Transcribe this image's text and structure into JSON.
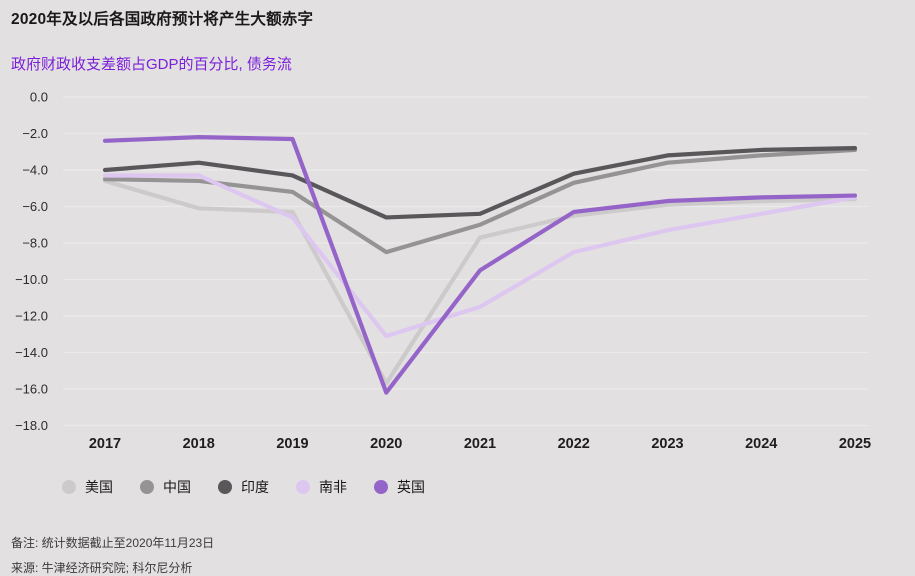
{
  "header": {
    "title": "2020年及以后各国政府预计将产生大额赤字",
    "subtitle": "政府财政收支差额占GDP的百分比, 债务流"
  },
  "colors": {
    "background": "#e2e0e1",
    "gridline": "#ebe9ea",
    "axis_text": "#2d2b2c",
    "subtitle_accent": "#7b1fd9"
  },
  "chart_data": {
    "type": "line",
    "title": "2020年及以后各国政府预计将产生大额赤字",
    "subtitle": "政府财政收支差额占GDP的百分比, 债务流",
    "categories": [
      "2017",
      "2018",
      "2019",
      "2020",
      "2021",
      "2022",
      "2023",
      "2024",
      "2025"
    ],
    "series": [
      {
        "key": "us",
        "name": "美国",
        "color": "#cccacb",
        "values": [
          -4.6,
          -6.1,
          -6.3,
          -15.7,
          -7.7,
          -6.5,
          -5.9,
          -5.7,
          -5.6
        ]
      },
      {
        "key": "china",
        "name": "中国",
        "color": "#959394",
        "values": [
          -4.5,
          -4.6,
          -5.2,
          -8.5,
          -7.0,
          -4.7,
          -3.6,
          -3.2,
          -2.9
        ]
      },
      {
        "key": "india",
        "name": "印度",
        "color": "#59575a",
        "values": [
          -4.0,
          -3.6,
          -4.3,
          -6.6,
          -6.4,
          -4.2,
          -3.2,
          -2.9,
          -2.8
        ]
      },
      {
        "key": "south-africa",
        "name": "南非",
        "color": "#ddc7f0",
        "values": [
          -4.3,
          -4.3,
          -6.6,
          -13.1,
          -11.5,
          -8.5,
          -7.3,
          -6.4,
          -5.5
        ]
      },
      {
        "key": "uk",
        "name": "英国",
        "color": "#9564c9",
        "values": [
          -2.4,
          -2.2,
          -2.3,
          -16.2,
          -9.5,
          -6.3,
          -5.7,
          -5.5,
          -5.4
        ]
      }
    ],
    "xlabel": "",
    "ylabel": "",
    "ylim": [
      -18.0,
      0.0
    ],
    "ytick_step": 2.0,
    "ytick_labels": [
      "0.0",
      "−2.0",
      "−4.0",
      "−6.0",
      "−8.0",
      "−10.0",
      "−12.0",
      "−14.0",
      "−16.0",
      "−18.0"
    ],
    "grid": "horizontal",
    "legend_position": "bottom-left"
  },
  "notes": {
    "note": "备注: 统计数据截止至2020年11月23日",
    "source": "来源: 牛津经济研究院; 科尔尼分析"
  }
}
